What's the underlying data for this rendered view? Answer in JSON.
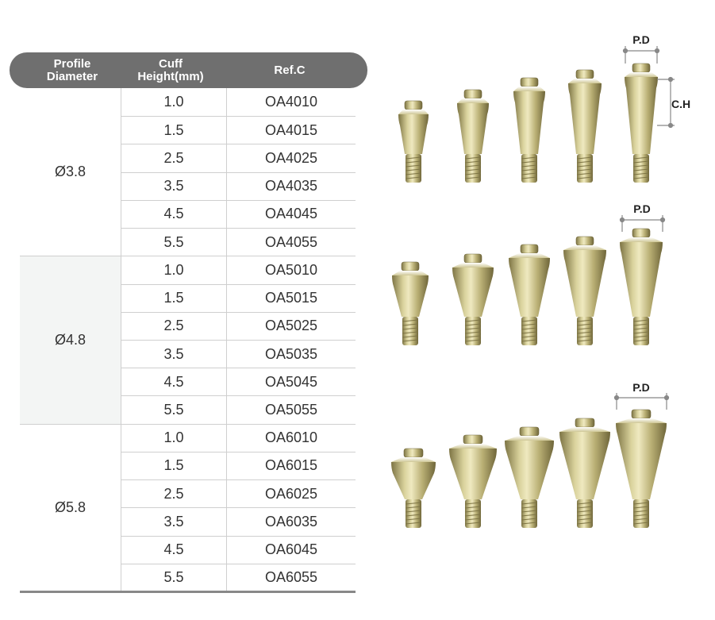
{
  "table": {
    "headers": [
      "Profile Diameter",
      "Cuff Height(mm)",
      "Ref.C"
    ],
    "groups": [
      {
        "diameter": "Ø3.8",
        "rows": [
          [
            "1.0",
            "OA4010"
          ],
          [
            "1.5",
            "OA4015"
          ],
          [
            "2.5",
            "OA4025"
          ],
          [
            "3.5",
            "OA4035"
          ],
          [
            "4.5",
            "OA4045"
          ],
          [
            "5.5",
            "OA4055"
          ]
        ]
      },
      {
        "diameter": "Ø4.8",
        "rows": [
          [
            "1.0",
            "OA5010"
          ],
          [
            "1.5",
            "OA5015"
          ],
          [
            "2.5",
            "OA5025"
          ],
          [
            "3.5",
            "OA5035"
          ],
          [
            "4.5",
            "OA5045"
          ],
          [
            "5.5",
            "OA5055"
          ]
        ]
      },
      {
        "diameter": "Ø5.8",
        "rows": [
          [
            "1.0",
            "OA6010"
          ],
          [
            "1.5",
            "OA6015"
          ],
          [
            "2.5",
            "OA6025"
          ],
          [
            "3.5",
            "OA6035"
          ],
          [
            "4.5",
            "OA6045"
          ],
          [
            "5.5",
            "OA6055"
          ]
        ]
      }
    ]
  },
  "figure": {
    "labels": {
      "profile_diameter": "P.D",
      "cuff_height": "C.H"
    }
  }
}
